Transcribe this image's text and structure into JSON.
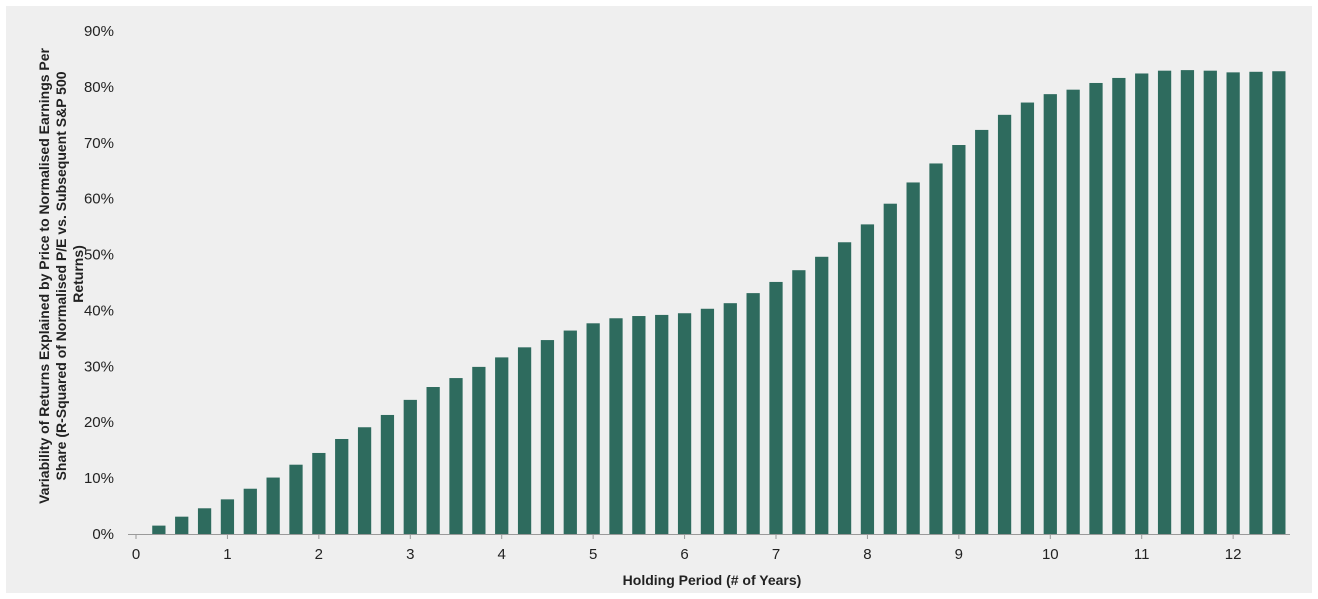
{
  "chart_data": {
    "type": "bar",
    "title": "",
    "xlabel": "Holding Period (# of Years)",
    "ylabel_lines": [
      "Variability of Returns Explained by Price to Normalised Earnings Per",
      "Share (R-Squared of Normalised P/E vs. Subsequent S&P 500",
      "Returns)"
    ],
    "x": [
      0.25,
      0.5,
      0.75,
      1.0,
      1.25,
      1.5,
      1.75,
      2.0,
      2.25,
      2.5,
      2.75,
      3.0,
      3.25,
      3.5,
      3.75,
      4.0,
      4.25,
      4.5,
      4.75,
      5.0,
      5.25,
      5.5,
      5.75,
      6.0,
      6.25,
      6.5,
      6.75,
      7.0,
      7.25,
      7.5,
      7.75,
      8.0,
      8.25,
      8.5,
      8.75,
      9.0,
      9.25,
      9.5,
      9.75,
      10.0,
      10.25,
      10.5,
      10.75,
      11.0,
      11.25,
      11.5,
      11.75,
      12.0,
      12.25,
      12.5
    ],
    "values": [
      1.5,
      3.1,
      4.6,
      6.2,
      8.1,
      10.1,
      12.4,
      14.5,
      17.0,
      19.1,
      21.3,
      24.0,
      26.3,
      27.9,
      29.9,
      31.6,
      33.4,
      34.7,
      36.4,
      37.7,
      38.6,
      39.0,
      39.2,
      39.5,
      40.3,
      41.3,
      43.1,
      45.1,
      47.2,
      49.6,
      52.2,
      55.4,
      59.1,
      62.9,
      66.3,
      69.6,
      72.3,
      75.0,
      77.2,
      78.7,
      79.5,
      80.7,
      81.6,
      82.4,
      82.9,
      83.0,
      82.9,
      82.6,
      82.7,
      82.8
    ],
    "ylim": [
      0,
      90
    ],
    "yticks": [
      0,
      10,
      20,
      30,
      40,
      50,
      60,
      70,
      80,
      90
    ],
    "ytick_labels": [
      "0%",
      "10%",
      "20%",
      "30%",
      "40%",
      "50%",
      "60%",
      "70%",
      "80%",
      "90%"
    ],
    "xlim": [
      0,
      12.6
    ],
    "xticks": [
      0,
      1,
      2,
      3,
      4,
      5,
      6,
      7,
      8,
      9,
      10,
      11,
      12
    ],
    "xtick_labels": [
      "0",
      "1",
      "2",
      "3",
      "4",
      "5",
      "6",
      "7",
      "8",
      "9",
      "10",
      "11",
      "12"
    ],
    "bar_color": "#2e6b5e",
    "background_color": "#efefef",
    "grid": false,
    "legend": "none"
  }
}
